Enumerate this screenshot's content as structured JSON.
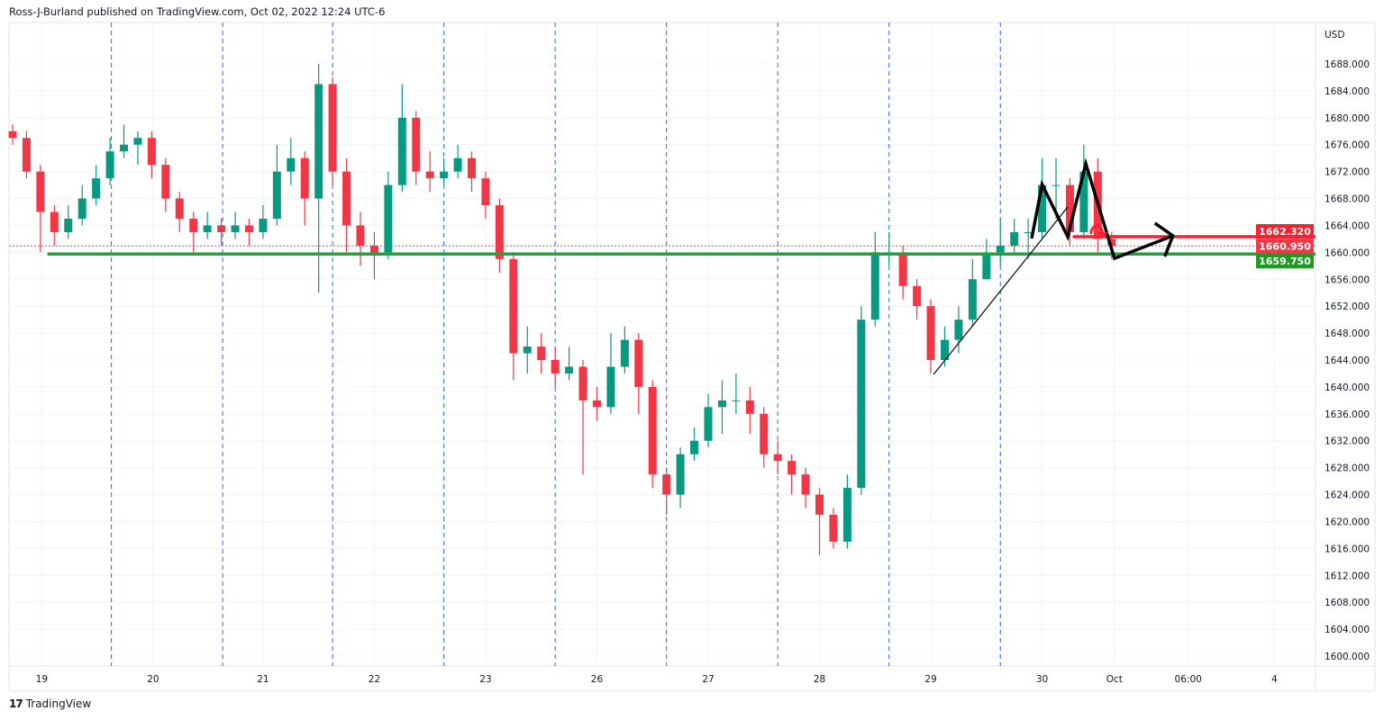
{
  "header": {
    "text": "Ross-J-Burland published on TradingView.com, Oct 02, 2022 12:24 UTC-6"
  },
  "footer": {
    "logo_mark": "17",
    "logo_text": "TradingView"
  },
  "colors": {
    "up": "#089981",
    "down": "#f23645",
    "support": "#22a33a",
    "resistance": "#f7202f",
    "last_price": "#f23645",
    "session_lines": "#2962ff",
    "drawing": "#000000"
  },
  "chart_data": {
    "type": "candlestick",
    "currency": "USD",
    "ylim": [
      1600,
      1688
    ],
    "y_ticks": [
      1600,
      1604,
      1608,
      1612,
      1616,
      1620,
      1624,
      1628,
      1632,
      1636,
      1640,
      1644,
      1648,
      1652,
      1656,
      1660,
      1664,
      1668,
      1672,
      1676,
      1680,
      1684,
      1688
    ],
    "x_ticks": [
      {
        "label": "19",
        "index": 2.1
      },
      {
        "label": "20",
        "index": 10.1
      },
      {
        "label": "21",
        "index": 18
      },
      {
        "label": "22",
        "index": 26
      },
      {
        "label": "23",
        "index": 34
      },
      {
        "label": "26",
        "index": 42
      },
      {
        "label": "27",
        "index": 50
      },
      {
        "label": "28",
        "index": 58
      },
      {
        "label": "29",
        "index": 66
      },
      {
        "label": "30",
        "index": 74
      },
      {
        "label": "Oct",
        "index": 79.2
      },
      {
        "label": "06:00",
        "index": 84.5
      },
      {
        "label": "4",
        "index": 90.7
      }
    ],
    "candles": [
      [
        1678,
        1679,
        1676,
        1677
      ],
      [
        1677,
        1678,
        1671,
        1672
      ],
      [
        1672,
        1673,
        1660,
        1666
      ],
      [
        1666,
        1667,
        1661,
        1663
      ],
      [
        1663,
        1667,
        1662,
        1665
      ],
      [
        1665,
        1670,
        1664,
        1668
      ],
      [
        1668,
        1673,
        1667,
        1671
      ],
      [
        1671,
        1677,
        1670,
        1675
      ],
      [
        1675,
        1679,
        1674,
        1676
      ],
      [
        1676,
        1678,
        1673,
        1677
      ],
      [
        1677,
        1678,
        1671,
        1673
      ],
      [
        1673,
        1674,
        1666,
        1668
      ],
      [
        1668,
        1669,
        1663,
        1665
      ],
      [
        1665,
        1666,
        1660,
        1663
      ],
      [
        1663,
        1666,
        1662,
        1664
      ],
      [
        1664,
        1665,
        1661,
        1663
      ],
      [
        1663,
        1666,
        1662,
        1664
      ],
      [
        1664,
        1665,
        1661,
        1663
      ],
      [
        1663,
        1667,
        1662,
        1665
      ],
      [
        1665,
        1676,
        1664,
        1672
      ],
      [
        1672,
        1677,
        1670,
        1674
      ],
      [
        1674,
        1675,
        1664,
        1668
      ],
      [
        1668,
        1688,
        1654,
        1685
      ],
      [
        1685,
        1686,
        1670,
        1672
      ],
      [
        1672,
        1674,
        1660,
        1664
      ],
      [
        1664,
        1666,
        1658,
        1661
      ],
      [
        1661,
        1663,
        1656,
        1660
      ],
      [
        1660,
        1672,
        1659,
        1670
      ],
      [
        1670,
        1685,
        1669,
        1680
      ],
      [
        1680,
        1681,
        1670,
        1672
      ],
      [
        1672,
        1675,
        1669,
        1671
      ],
      [
        1671,
        1674,
        1670,
        1672
      ],
      [
        1672,
        1676,
        1671,
        1674
      ],
      [
        1674,
        1675,
        1669,
        1671
      ],
      [
        1671,
        1672,
        1665,
        1667
      ],
      [
        1667,
        1668,
        1657,
        1659
      ],
      [
        1659,
        1660,
        1641,
        1645
      ],
      [
        1645,
        1649,
        1642,
        1646
      ],
      [
        1646,
        1648,
        1642,
        1644
      ],
      [
        1644,
        1646,
        1640,
        1642
      ],
      [
        1642,
        1646,
        1641,
        1643
      ],
      [
        1643,
        1644,
        1627,
        1638
      ],
      [
        1638,
        1640,
        1635,
        1637
      ],
      [
        1637,
        1648,
        1636,
        1643
      ],
      [
        1643,
        1649,
        1642,
        1647
      ],
      [
        1647,
        1648,
        1636,
        1640
      ],
      [
        1640,
        1641,
        1625,
        1627
      ],
      [
        1627,
        1628,
        1621,
        1624
      ],
      [
        1624,
        1631,
        1622,
        1630
      ],
      [
        1630,
        1634,
        1629,
        1632
      ],
      [
        1632,
        1639,
        1631,
        1637
      ],
      [
        1637,
        1641,
        1633,
        1638
      ],
      [
        1638,
        1642,
        1636,
        1638
      ],
      [
        1638,
        1640,
        1633,
        1636
      ],
      [
        1636,
        1637,
        1628,
        1630
      ],
      [
        1630,
        1632,
        1627,
        1629
      ],
      [
        1629,
        1630,
        1624,
        1627
      ],
      [
        1627,
        1628,
        1622,
        1624
      ],
      [
        1624,
        1625,
        1615,
        1621
      ],
      [
        1621,
        1622,
        1616,
        1617
      ],
      [
        1617,
        1627,
        1616,
        1625
      ],
      [
        1625,
        1652,
        1624,
        1650
      ],
      [
        1650,
        1663,
        1649,
        1660
      ],
      [
        1660,
        1663,
        1658,
        1660
      ],
      [
        1660,
        1661,
        1653,
        1655
      ],
      [
        1655,
        1656,
        1650,
        1652
      ],
      [
        1652,
        1653,
        1642,
        1644
      ],
      [
        1644,
        1649,
        1643,
        1647
      ],
      [
        1647,
        1652,
        1645,
        1650
      ],
      [
        1650,
        1659,
        1649,
        1656
      ],
      [
        1656,
        1662,
        1656,
        1660
      ],
      [
        1660,
        1665,
        1658,
        1661
      ],
      [
        1661,
        1665,
        1660,
        1663
      ],
      [
        1663,
        1665,
        1659,
        1663
      ],
      [
        1663,
        1674,
        1662,
        1670
      ],
      [
        1670,
        1674,
        1665,
        1670
      ],
      [
        1670,
        1671,
        1661,
        1663
      ],
      [
        1663,
        1676,
        1662,
        1672
      ],
      [
        1672,
        1674,
        1660,
        1662
      ],
      [
        1662,
        1663,
        1659,
        1660.95
      ]
    ],
    "price_labels": [
      {
        "label": "1662.320",
        "value": 1662.32,
        "color": "#f7202f"
      },
      {
        "label": "1660.950",
        "value": 1660.95,
        "color": "#f23645"
      },
      {
        "label": "1659.750",
        "value": 1659.75,
        "color": "#1e9a22"
      }
    ],
    "drawings": {
      "support_line": {
        "price": 1659.75,
        "from_index": 2.5
      },
      "resistance_line": {
        "price": 1662.32,
        "from_index": 76.2
      },
      "last_price_line": {
        "price": 1660.95
      },
      "trendline": [
        [
          66.2,
          1641.86
        ],
        [
          75.84,
          1666.74
        ]
      ],
      "zigzag_projection": [
        [
          73.25,
          1662.06
        ],
        [
          74.0,
          1670.08
        ],
        [
          75.84,
          1662.32
        ],
        [
          77.14,
          1673.17
        ],
        [
          79.2,
          1659.1
        ],
        [
          83.4,
          1662.46
        ]
      ]
    }
  }
}
